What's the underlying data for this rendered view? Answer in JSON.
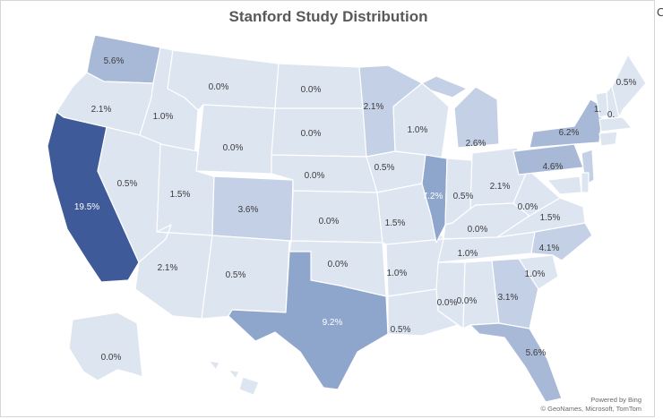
{
  "title": "Stanford Study Distribution",
  "edge_glyph": "C",
  "credit": {
    "line1": "Powered by Bing",
    "line2": "© GeoNames, Microsoft, TomTom"
  },
  "colors": {
    "light": "#dde5f1",
    "low": "#c3d0e5",
    "mid": "#a7b9d7",
    "midhigh": "#8ea5cc",
    "high": "#6f89bb",
    "max": "#3e5a98",
    "dark_text": "#3c3c3c",
    "light_text": "#ffffff"
  },
  "states": [
    {
      "key": "wa",
      "name": "Washington",
      "label": "5.6%",
      "level": "mid"
    },
    {
      "key": "or",
      "name": "Oregon",
      "label": "2.1%",
      "level": "light"
    },
    {
      "key": "ca",
      "name": "California",
      "label": "19.5%",
      "level": "max"
    },
    {
      "key": "id",
      "name": "Idaho",
      "label": "1.0%",
      "level": "light"
    },
    {
      "key": "nv",
      "name": "Nevada",
      "label": "0.5%",
      "level": "light"
    },
    {
      "key": "mt",
      "name": "Montana",
      "label": "0.0%",
      "level": "light"
    },
    {
      "key": "wy",
      "name": "Wyoming",
      "label": "0.0%",
      "level": "light"
    },
    {
      "key": "ut",
      "name": "Utah",
      "label": "1.5%",
      "level": "light"
    },
    {
      "key": "az",
      "name": "Arizona",
      "label": "2.1%",
      "level": "light"
    },
    {
      "key": "co",
      "name": "Colorado",
      "label": "3.6%",
      "level": "low"
    },
    {
      "key": "nm",
      "name": "New Mexico",
      "label": "0.5%",
      "level": "light"
    },
    {
      "key": "nd",
      "name": "North Dakota",
      "label": "0.0%",
      "level": "light"
    },
    {
      "key": "sd",
      "name": "South Dakota",
      "label": "0.0%",
      "level": "light"
    },
    {
      "key": "ne",
      "name": "Nebraska",
      "label": "0.0%",
      "level": "light"
    },
    {
      "key": "ks",
      "name": "Kansas",
      "label": "0.0%",
      "level": "light"
    },
    {
      "key": "ok",
      "name": "Oklahoma",
      "label": "0.0%",
      "level": "light"
    },
    {
      "key": "tx",
      "name": "Texas",
      "label": "9.2%",
      "level": "midhigh"
    },
    {
      "key": "mn",
      "name": "Minnesota",
      "label": "2.1%",
      "level": "low"
    },
    {
      "key": "ia",
      "name": "Iowa",
      "label": "0.5%",
      "level": "light"
    },
    {
      "key": "mo",
      "name": "Missouri",
      "label": "1.5%",
      "level": "light"
    },
    {
      "key": "ar",
      "name": "Arkansas",
      "label": "1.0%",
      "level": "light"
    },
    {
      "key": "la",
      "name": "Louisiana",
      "label": "0.5%",
      "level": "light"
    },
    {
      "key": "wi",
      "name": "Wisconsin",
      "label": "1.0%",
      "level": "light"
    },
    {
      "key": "il",
      "name": "Illinois",
      "label": "7.2%",
      "level": "midhigh"
    },
    {
      "key": "mi",
      "name": "Michigan",
      "label": "2.6%",
      "level": "low"
    },
    {
      "key": "in",
      "name": "Indiana",
      "label": "0.5%",
      "level": "light"
    },
    {
      "key": "oh",
      "name": "Ohio",
      "label": "2.1%",
      "level": "light"
    },
    {
      "key": "ky",
      "name": "Kentucky",
      "label": "0.0%",
      "level": "light"
    },
    {
      "key": "tn",
      "name": "Tennessee",
      "label": "1.0%",
      "level": "light"
    },
    {
      "key": "ms",
      "name": "Mississippi",
      "label": "0.0%",
      "level": "light"
    },
    {
      "key": "al",
      "name": "Alabama",
      "label": "0.0%",
      "level": "light"
    },
    {
      "key": "ga",
      "name": "Georgia",
      "label": "3.1%",
      "level": "low"
    },
    {
      "key": "fl",
      "name": "Florida",
      "label": "5.6%",
      "level": "mid"
    },
    {
      "key": "sc",
      "name": "South Carolina",
      "label": "1.0%",
      "level": "light"
    },
    {
      "key": "nc",
      "name": "North Carolina",
      "label": "4.1%",
      "level": "low"
    },
    {
      "key": "va",
      "name": "Virginia",
      "label": "1.5%",
      "level": "light"
    },
    {
      "key": "wv",
      "name": "West Virginia",
      "label": "0.0%",
      "level": "light"
    },
    {
      "key": "pa",
      "name": "Pennsylvania",
      "label": "4.6%",
      "level": "mid"
    },
    {
      "key": "ny",
      "name": "New York",
      "label": "6.2%",
      "level": "mid"
    },
    {
      "key": "vt",
      "name": "Vermont",
      "label": "1.",
      "level": "light"
    },
    {
      "key": "nh",
      "name": "New Hampshire",
      "label": "0.",
      "level": "light"
    },
    {
      "key": "me",
      "name": "Maine",
      "label": "0.5%",
      "level": "light"
    },
    {
      "key": "ma",
      "name": "Massachusetts",
      "label": "",
      "level": "light"
    },
    {
      "key": "ct",
      "name": "Connecticut",
      "label": "",
      "level": "light"
    },
    {
      "key": "nj",
      "name": "New Jersey",
      "label": "",
      "level": "low"
    },
    {
      "key": "md",
      "name": "Maryland",
      "label": "",
      "level": "light"
    },
    {
      "key": "de",
      "name": "Delaware",
      "label": "",
      "level": "light"
    },
    {
      "key": "ak",
      "name": "Alaska",
      "label": "0.0%",
      "level": "light"
    },
    {
      "key": "hi",
      "name": "Hawaii",
      "label": "",
      "level": "light"
    }
  ]
}
